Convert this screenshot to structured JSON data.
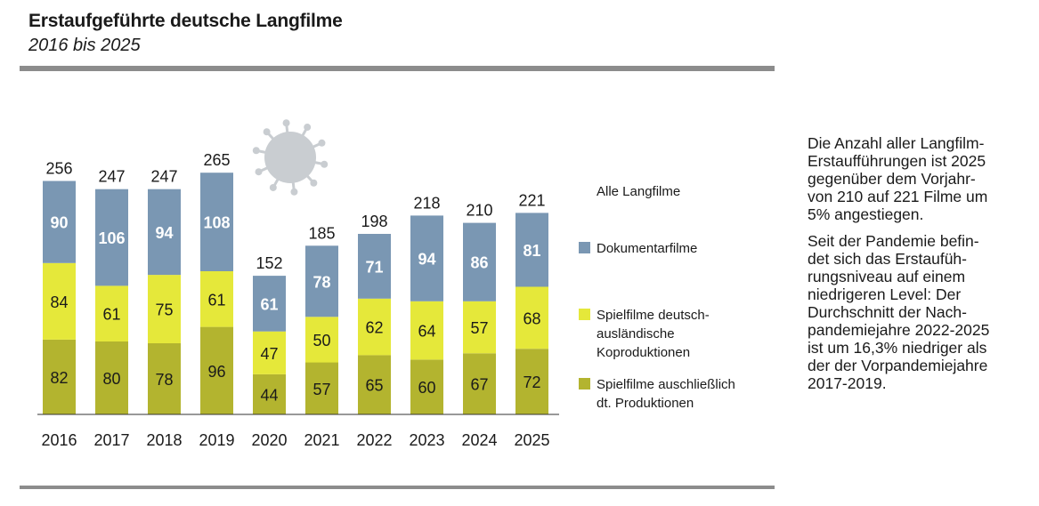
{
  "header": {
    "title": "Erstaufgeführte deutsche Langfilme",
    "subtitle": "2016 bis 2025"
  },
  "note": {
    "paragraph1": "Die Anzahl aller Langfilm-\nErstaufführungen ist 2025\ngegenüber dem Vorjahr-\nvon 210 auf 221 Filme um\n5% angestiegen.",
    "paragraph2": "Seit der Pandemie befin-\ndet sich das Erstaufüh-\nrungsniveau auf einem\nniedrigeren Level: Der\nDurchschnitt der Nach-\npandemiejahre 2022-2025\nist um 16,3% niedriger als\nder der Vorpandemiejahre\n2017-2019."
  },
  "icon": {
    "name": "coronavirus-icon",
    "color": "#c9cdd1"
  },
  "chart_data": {
    "type": "bar",
    "stacked": true,
    "categories": [
      "2016",
      "2017",
      "2018",
      "2019",
      "2020",
      "2021",
      "2022",
      "2023",
      "2024",
      "2025"
    ],
    "totals": [
      256,
      247,
      247,
      265,
      152,
      185,
      198,
      218,
      210,
      221
    ],
    "totals_label": "Alle Langfilme",
    "series": [
      {
        "name": "Spielfilme auschließlich dt. Produktionen",
        "legend_lines": [
          "Spielfilme auschließlich",
          "dt. Produktionen"
        ],
        "color": "#b3b42f",
        "values": [
          82,
          80,
          78,
          96,
          44,
          57,
          65,
          60,
          67,
          72
        ]
      },
      {
        "name": "Spielfilme deutsch-ausländische Koproduktionen",
        "legend_lines": [
          "Spielfilme deutsch-",
          "ausländische",
          "Koproduktionen"
        ],
        "color": "#e5e83a",
        "values": [
          84,
          61,
          75,
          61,
          47,
          50,
          62,
          64,
          57,
          68
        ]
      },
      {
        "name": "Dokumentarfilme",
        "legend_lines": [
          "Dokumentarfilme"
        ],
        "color": "#7a97b3",
        "values": [
          90,
          106,
          94,
          108,
          61,
          78,
          71,
          94,
          86,
          81
        ]
      }
    ],
    "legend_placement": "right",
    "grid": false,
    "ylim": [
      0,
      265
    ]
  }
}
